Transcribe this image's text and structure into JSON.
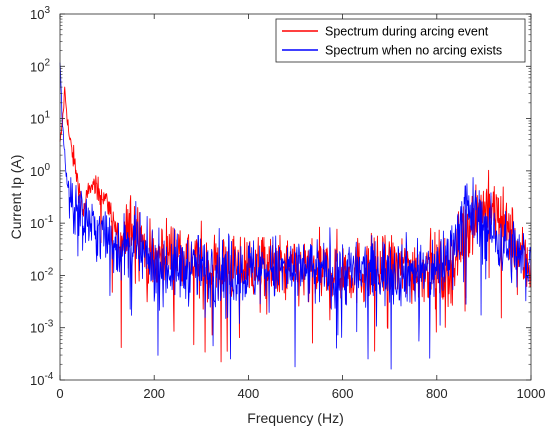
{
  "chart_data": {
    "type": "line",
    "title": "",
    "xlabel": "Frequency (Hz)",
    "ylabel": "Current Ip (A)",
    "xlim": [
      0,
      1000
    ],
    "ylim": [
      0.0001,
      1000
    ],
    "yscale": "log",
    "grid": false,
    "legend_position": "top-right",
    "x_ticks": [
      "0",
      "200",
      "400",
      "600",
      "800",
      "1000"
    ],
    "y_ticks": [
      "10^-4",
      "10^-3",
      "10^-2",
      "10^-1",
      "10^0",
      "10^1",
      "10^2",
      "10^3"
    ],
    "series": [
      {
        "name": "Spectrum during arcing event",
        "color": "#ff0000",
        "x": [
          0,
          5,
          10,
          15,
          20,
          30,
          40,
          50,
          60,
          70,
          80,
          90,
          100,
          110,
          120,
          130,
          140,
          150,
          160,
          170,
          180,
          200,
          220,
          240,
          260,
          280,
          300,
          350,
          400,
          450,
          500,
          550,
          600,
          650,
          700,
          750,
          800,
          820,
          840,
          860,
          880,
          900,
          920,
          940,
          960,
          980,
          1000
        ],
        "y": [
          3,
          8,
          35,
          12,
          4,
          1.5,
          0.5,
          0.15,
          0.4,
          0.55,
          0.45,
          0.35,
          0.25,
          0.15,
          0.06,
          0.03,
          0.05,
          0.09,
          0.1,
          0.08,
          0.03,
          0.018,
          0.03,
          0.025,
          0.03,
          0.02,
          0.015,
          0.014,
          0.015,
          0.013,
          0.012,
          0.011,
          0.012,
          0.012,
          0.013,
          0.013,
          0.015,
          0.01,
          0.02,
          0.08,
          0.15,
          0.2,
          0.17,
          0.1,
          0.05,
          0.02,
          0.015
        ]
      },
      {
        "name": "Spectrum when no arcing exists",
        "color": "#0000ff",
        "x": [
          0,
          5,
          10,
          15,
          20,
          30,
          40,
          50,
          60,
          70,
          80,
          90,
          100,
          120,
          140,
          160,
          180,
          200,
          220,
          240,
          260,
          280,
          300,
          350,
          400,
          450,
          500,
          550,
          600,
          650,
          700,
          750,
          800,
          820,
          840,
          860,
          880,
          900,
          920,
          940,
          960,
          980,
          1000
        ],
        "y": [
          150,
          8,
          2,
          0.6,
          0.4,
          0.2,
          0.15,
          0.12,
          0.1,
          0.08,
          0.07,
          0.06,
          0.05,
          0.04,
          0.03,
          0.035,
          0.02,
          0.015,
          0.015,
          0.014,
          0.013,
          0.014,
          0.013,
          0.013,
          0.012,
          0.013,
          0.012,
          0.011,
          0.012,
          0.011,
          0.012,
          0.012,
          0.014,
          0.02,
          0.05,
          0.18,
          0.15,
          0.1,
          0.06,
          0.04,
          0.03,
          0.02,
          0.015
        ]
      }
    ]
  }
}
